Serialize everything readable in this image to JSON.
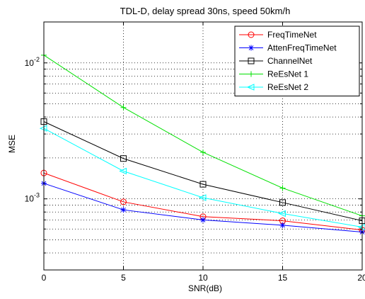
{
  "chart_data": {
    "type": "line",
    "title": "TDL-D, delay spread 30ns, speed 50km/h",
    "xlabel": "SNR(dB)",
    "ylabel": "MSE",
    "x": [
      0,
      5,
      10,
      15,
      20
    ],
    "xlim": [
      0,
      20
    ],
    "ylim": [
      0.0003,
      0.02
    ],
    "yscale": "log",
    "xticks": [
      "0",
      "5",
      "10",
      "15",
      "20"
    ],
    "yticks": [
      {
        "value": 0.01,
        "base": "10",
        "exp": "-2"
      },
      {
        "value": 0.001,
        "base": "10",
        "exp": "-3"
      }
    ],
    "grid": true,
    "legend_position": "top-right",
    "series": [
      {
        "name": "FreqTimeNet",
        "color": "#ff0000",
        "marker": "circle",
        "values": [
          0.00155,
          0.00095,
          0.00074,
          0.00069,
          0.00059
        ]
      },
      {
        "name": "AttenFreqTimeNet",
        "color": "#0000ff",
        "marker": "asterisk",
        "values": [
          0.0013,
          0.00083,
          0.0007,
          0.00064,
          0.00057
        ]
      },
      {
        "name": "ChannelNet",
        "color": "#000000",
        "marker": "square",
        "values": [
          0.0037,
          0.00198,
          0.00128,
          0.00094,
          0.00069
        ]
      },
      {
        "name": "ReEsNet 1",
        "color": "#00e000",
        "marker": "plus",
        "values": [
          0.0114,
          0.0047,
          0.0022,
          0.0012,
          0.00075
        ]
      },
      {
        "name": "ReEsNet 2",
        "color": "#00ffff",
        "marker": "triangle-left",
        "values": [
          0.0033,
          0.0016,
          0.00102,
          0.00078,
          0.00062
        ]
      }
    ]
  }
}
